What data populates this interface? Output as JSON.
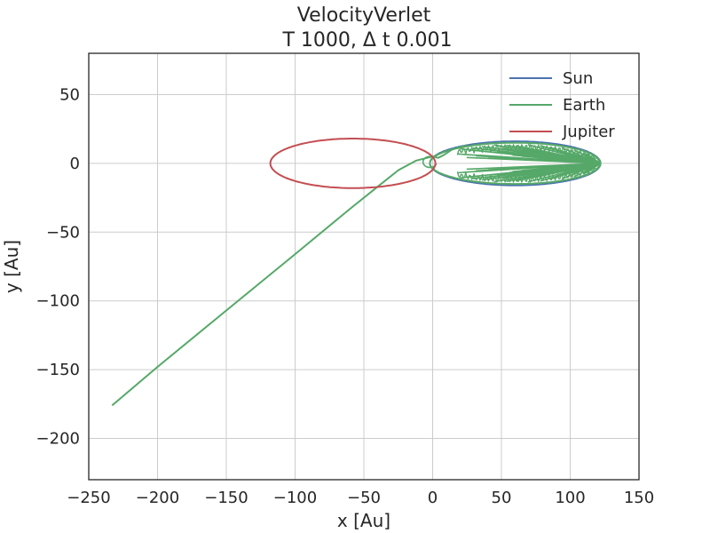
{
  "chart_data": {
    "type": "line",
    "title": "VelocityVerlet",
    "subtitle": "T 1000, Δ t 0.001",
    "xlabel": "x [Au]",
    "ylabel": "y [Au]",
    "xlim": [
      -250,
      150
    ],
    "ylim": [
      -230,
      80
    ],
    "xticks": [
      -250,
      -200,
      -150,
      -100,
      -50,
      0,
      50,
      100,
      150
    ],
    "yticks": [
      50,
      0,
      -50,
      -100,
      -150,
      -200
    ],
    "xtick_labels": [
      "−250",
      "−200",
      "−150",
      "−100",
      "−50",
      "0",
      "50",
      "100",
      "150"
    ],
    "ytick_labels": [
      "50",
      "0",
      "−50",
      "−100",
      "−150",
      "−200"
    ],
    "grid": true,
    "legend_position": "top-right",
    "series": [
      {
        "name": "Sun",
        "color": "#4c72b0",
        "shape": "ellipse",
        "center": [
          60,
          0
        ],
        "radii": [
          62,
          16
        ]
      },
      {
        "name": "Earth",
        "color": "#55a868",
        "shape": "path",
        "x": [
          -233,
          -200,
          -150,
          -100,
          -60,
          -40,
          -25,
          -12,
          -4,
          0,
          4,
          8,
          14,
          24
        ],
        "y": [
          -176,
          -148,
          -107,
          -66,
          -33,
          -17,
          -5,
          2,
          4,
          5,
          4,
          6,
          10,
          13
        ],
        "lobe": {
          "center": [
            60,
            0
          ],
          "radii": [
            62,
            15
          ],
          "tip": [
            122,
            0
          ],
          "inner_start_x": 18
        }
      },
      {
        "name": "Jupiter",
        "color": "#c44e52",
        "shape": "ellipse",
        "center": [
          -58,
          0
        ],
        "radii": [
          60,
          18
        ]
      }
    ]
  }
}
